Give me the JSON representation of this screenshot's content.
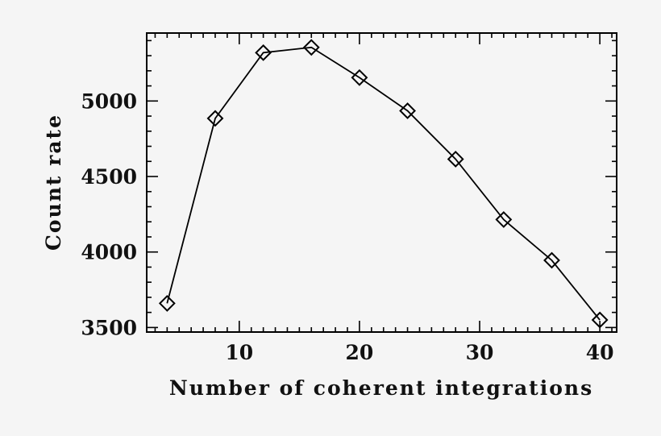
{
  "chart_data": {
    "type": "line",
    "title": "",
    "xlabel": "Number of coherent integrations",
    "ylabel": "Count rate",
    "x": [
      4,
      8,
      12,
      16,
      20,
      24,
      28,
      32,
      36,
      40
    ],
    "series": [
      {
        "name": "Count rate",
        "marker": "diamond-open",
        "line_color": "#000000",
        "values": [
          3660,
          4885,
          5320,
          5355,
          5155,
          4935,
          4615,
          4215,
          3945,
          3550
        ]
      }
    ],
    "xlim": [
      2.3,
      41.4
    ],
    "ylim": [
      3470,
      5450
    ],
    "x_ticks": [
      10,
      20,
      30,
      40
    ],
    "x_tick_labels": [
      "10",
      "20",
      "30",
      "40"
    ],
    "x_minor_step": 1,
    "y_ticks": [
      3500,
      4000,
      4500,
      5000
    ],
    "y_tick_labels": [
      "3500",
      "4000",
      "4500",
      "5000"
    ],
    "y_minor_step": 100,
    "grid": false,
    "legend": null,
    "colors": {
      "background": "#f5f5f5",
      "foreground": "#000000"
    }
  }
}
